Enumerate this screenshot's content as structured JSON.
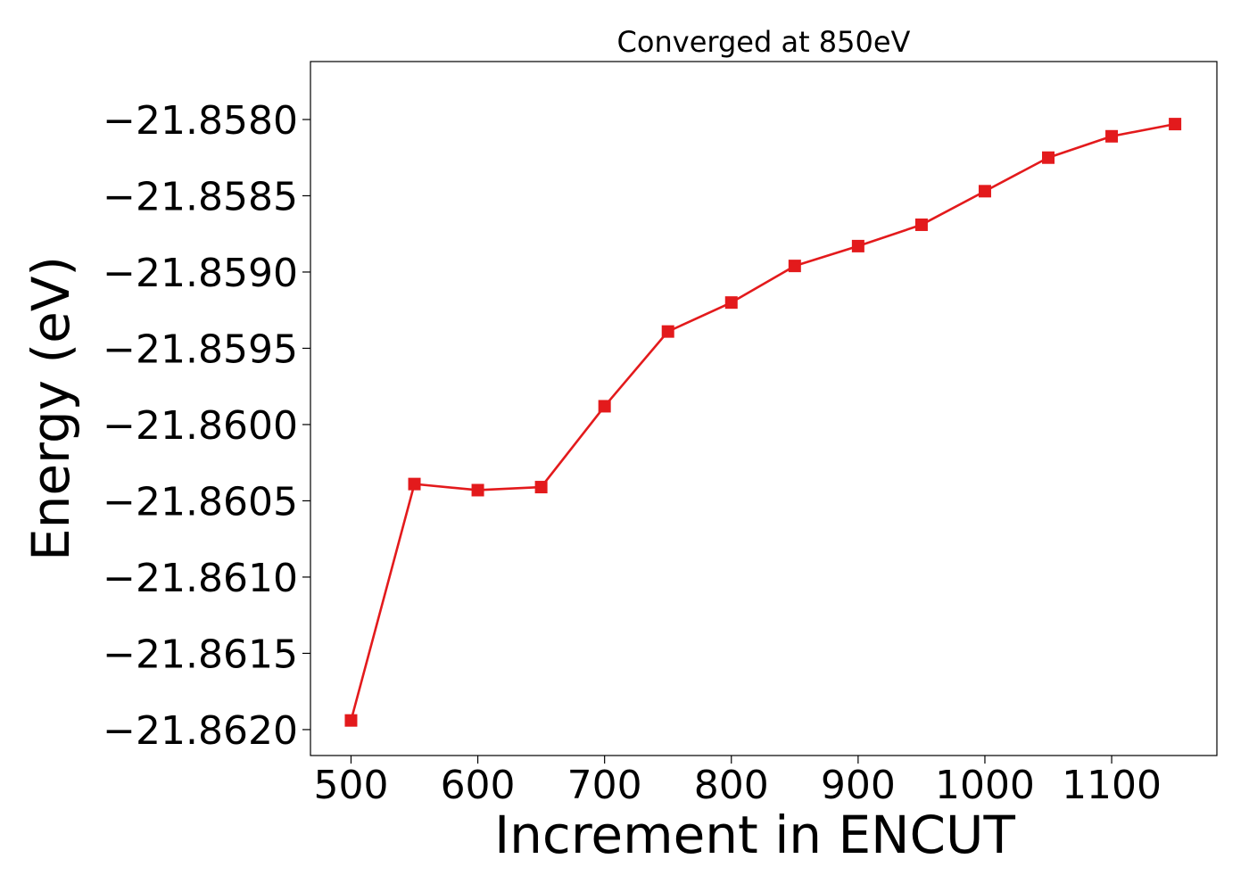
{
  "chart_data": {
    "type": "line",
    "title": "Converged at 850eV",
    "xlabel": "Increment in ENCUT",
    "ylabel": "Energy (eV)",
    "x": [
      500,
      550,
      600,
      650,
      700,
      750,
      800,
      850,
      900,
      950,
      1000,
      1050,
      1100,
      1150
    ],
    "series": [
      {
        "values": [
          -21.86194,
          -21.86039,
          -21.86043,
          -21.86041,
          -21.85988,
          -21.85939,
          -21.8592,
          -21.85896,
          -21.85883,
          -21.85869,
          -21.85847,
          -21.85825,
          -21.85811,
          -21.85803
        ],
        "color": "#e31a1c",
        "marker": "square"
      }
    ],
    "xlim": [
      468,
      1183
    ],
    "ylim": [
      -21.86217,
      -21.85762
    ],
    "xticks": [
      500,
      600,
      700,
      800,
      900,
      1000,
      1100
    ],
    "xtick_labels": [
      "500",
      "600",
      "700",
      "800",
      "900",
      "1000",
      "1100"
    ],
    "yticks": [
      -21.858,
      -21.8585,
      -21.859,
      -21.8595,
      -21.86,
      -21.8605,
      -21.861,
      -21.8615,
      -21.862
    ],
    "ytick_labels": [
      "−21.8580",
      "−21.8585",
      "−21.8590",
      "−21.8595",
      "−21.8600",
      "−21.8605",
      "−21.8610",
      "−21.8615",
      "−21.8620"
    ],
    "grid": false,
    "legend": false
  }
}
